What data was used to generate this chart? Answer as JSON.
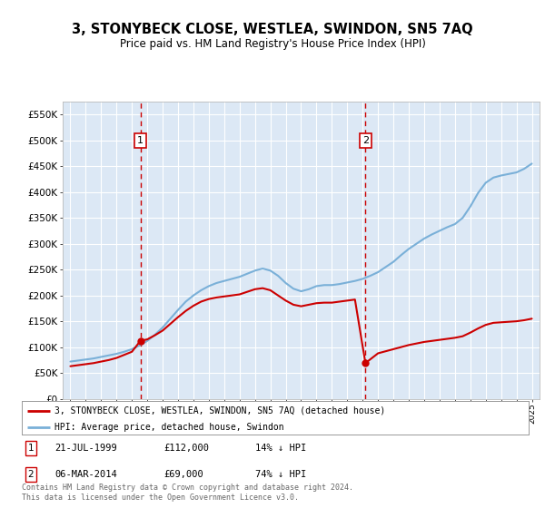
{
  "title": "3, STONYBECK CLOSE, WESTLEA, SWINDON, SN5 7AQ",
  "subtitle": "Price paid vs. HM Land Registry's House Price Index (HPI)",
  "legend_line1": "3, STONYBECK CLOSE, WESTLEA, SWINDON, SN5 7AQ (detached house)",
  "legend_line2": "HPI: Average price, detached house, Swindon",
  "footer": "Contains HM Land Registry data © Crown copyright and database right 2024.\nThis data is licensed under the Open Government Licence v3.0.",
  "transactions": [
    {
      "num": 1,
      "date": "21-JUL-1999",
      "price": "£112,000",
      "note": "14% ↓ HPI",
      "year": 1999.55,
      "value": 112000
    },
    {
      "num": 2,
      "date": "06-MAR-2014",
      "price": "£69,000",
      "note": "74% ↓ HPI",
      "year": 2014.18,
      "value": 69000
    }
  ],
  "hpi_x": [
    1995.0,
    1995.5,
    1996.0,
    1996.5,
    1997.0,
    1997.5,
    1998.0,
    1998.5,
    1999.0,
    1999.5,
    2000.0,
    2000.5,
    2001.0,
    2001.5,
    2002.0,
    2002.5,
    2003.0,
    2003.5,
    2004.0,
    2004.5,
    2005.0,
    2005.5,
    2006.0,
    2006.5,
    2007.0,
    2007.5,
    2008.0,
    2008.5,
    2009.0,
    2009.5,
    2010.0,
    2010.5,
    2011.0,
    2011.5,
    2012.0,
    2012.5,
    2013.0,
    2013.5,
    2014.0,
    2014.5,
    2015.0,
    2015.5,
    2016.0,
    2016.5,
    2017.0,
    2017.5,
    2018.0,
    2018.5,
    2019.0,
    2019.5,
    2020.0,
    2020.5,
    2021.0,
    2021.5,
    2022.0,
    2022.5,
    2023.0,
    2023.5,
    2024.0,
    2024.5,
    2025.0
  ],
  "hpi_y": [
    72000,
    74000,
    76000,
    78000,
    81000,
    84000,
    87000,
    91000,
    96000,
    103000,
    112000,
    124000,
    138000,
    155000,
    172000,
    188000,
    200000,
    210000,
    218000,
    224000,
    228000,
    232000,
    236000,
    242000,
    248000,
    252000,
    248000,
    238000,
    224000,
    213000,
    208000,
    212000,
    218000,
    220000,
    220000,
    222000,
    225000,
    228000,
    232000,
    238000,
    245000,
    255000,
    265000,
    278000,
    290000,
    300000,
    310000,
    318000,
    325000,
    332000,
    338000,
    350000,
    372000,
    398000,
    418000,
    428000,
    432000,
    435000,
    438000,
    445000,
    455000
  ],
  "red_x": [
    1995.0,
    1995.5,
    1996.0,
    1996.5,
    1997.0,
    1997.5,
    1998.0,
    1998.5,
    1999.0,
    1999.55,
    2000.0,
    2000.5,
    2001.0,
    2001.5,
    2002.0,
    2002.5,
    2003.0,
    2003.5,
    2004.0,
    2004.5,
    2005.0,
    2005.5,
    2006.0,
    2006.5,
    2007.0,
    2007.5,
    2008.0,
    2008.5,
    2009.0,
    2009.5,
    2010.0,
    2010.5,
    2011.0,
    2011.5,
    2012.0,
    2012.5,
    2013.0,
    2013.5,
    2014.18,
    2015.0,
    2015.5,
    2016.0,
    2016.5,
    2017.0,
    2017.5,
    2018.0,
    2018.5,
    2019.0,
    2019.5,
    2020.0,
    2020.5,
    2021.0,
    2021.5,
    2022.0,
    2022.5,
    2023.0,
    2023.5,
    2024.0,
    2024.5,
    2025.0
  ],
  "red_y": [
    63000,
    65000,
    67000,
    69000,
    72000,
    75000,
    79000,
    85000,
    91000,
    112000,
    115000,
    123000,
    132000,
    145000,
    158000,
    170000,
    180000,
    188000,
    193000,
    196000,
    198000,
    200000,
    202000,
    207000,
    212000,
    214000,
    210000,
    200000,
    190000,
    182000,
    179000,
    182000,
    185000,
    186000,
    186000,
    188000,
    190000,
    192000,
    69000,
    88000,
    92000,
    96000,
    100000,
    104000,
    107000,
    110000,
    112000,
    114000,
    116000,
    118000,
    121000,
    128000,
    136000,
    143000,
    147000,
    148000,
    149000,
    150000,
    152000,
    155000
  ],
  "ylim": [
    0,
    575000
  ],
  "xlim": [
    1994.5,
    2025.5
  ],
  "yticks": [
    0,
    50000,
    100000,
    150000,
    200000,
    250000,
    300000,
    350000,
    400000,
    450000,
    500000,
    550000
  ],
  "bg_color": "#dce8f5",
  "grid_color": "#ffffff",
  "red_color": "#cc0000",
  "blue_color": "#7ab0d8",
  "box_color": "#cc0000"
}
